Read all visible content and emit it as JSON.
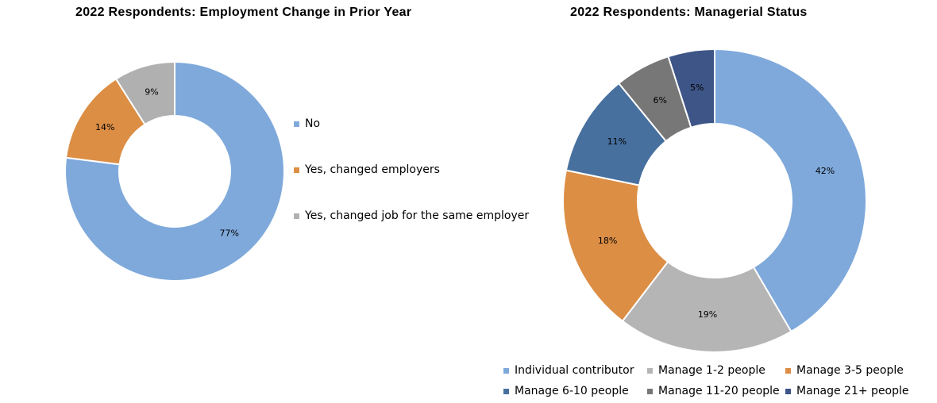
{
  "chart_data": [
    {
      "type": "pie",
      "subtype": "donut",
      "title": "2022 Respondents: Employment Change in Prior Year",
      "legend_position": "right",
      "slices": [
        {
          "label": "No",
          "value": 77,
          "value_label": "77%",
          "color": "#7FA9DB"
        },
        {
          "label": "Yes, changed employers",
          "value": 14,
          "value_label": "14%",
          "color": "#DC8E45"
        },
        {
          "label": "Yes, changed job for the same employer",
          "value": 9,
          "value_label": "9%",
          "color": "#B0B0B0"
        }
      ]
    },
    {
      "type": "pie",
      "subtype": "donut",
      "title": "2022 Respondents: Managerial Status",
      "legend_position": "bottom",
      "slices": [
        {
          "label": "Individual contributor",
          "value": 42,
          "value_label": "42%",
          "color": "#7FA9DB"
        },
        {
          "label": "Manage 1-2 people",
          "value": 19,
          "value_label": "19%",
          "color": "#B5B5B5"
        },
        {
          "label": "Manage 3-5 people",
          "value": 18,
          "value_label": "18%",
          "color": "#DC8E45"
        },
        {
          "label": "Manage 6-10 people",
          "value": 11,
          "value_label": "11%",
          "color": "#47709F"
        },
        {
          "label": "Manage 11-20 people",
          "value": 6,
          "value_label": "6%",
          "color": "#777777"
        },
        {
          "label": "Manage 21+ people",
          "value": 5,
          "value_label": "5%",
          "color": "#3E5587"
        }
      ]
    }
  ]
}
